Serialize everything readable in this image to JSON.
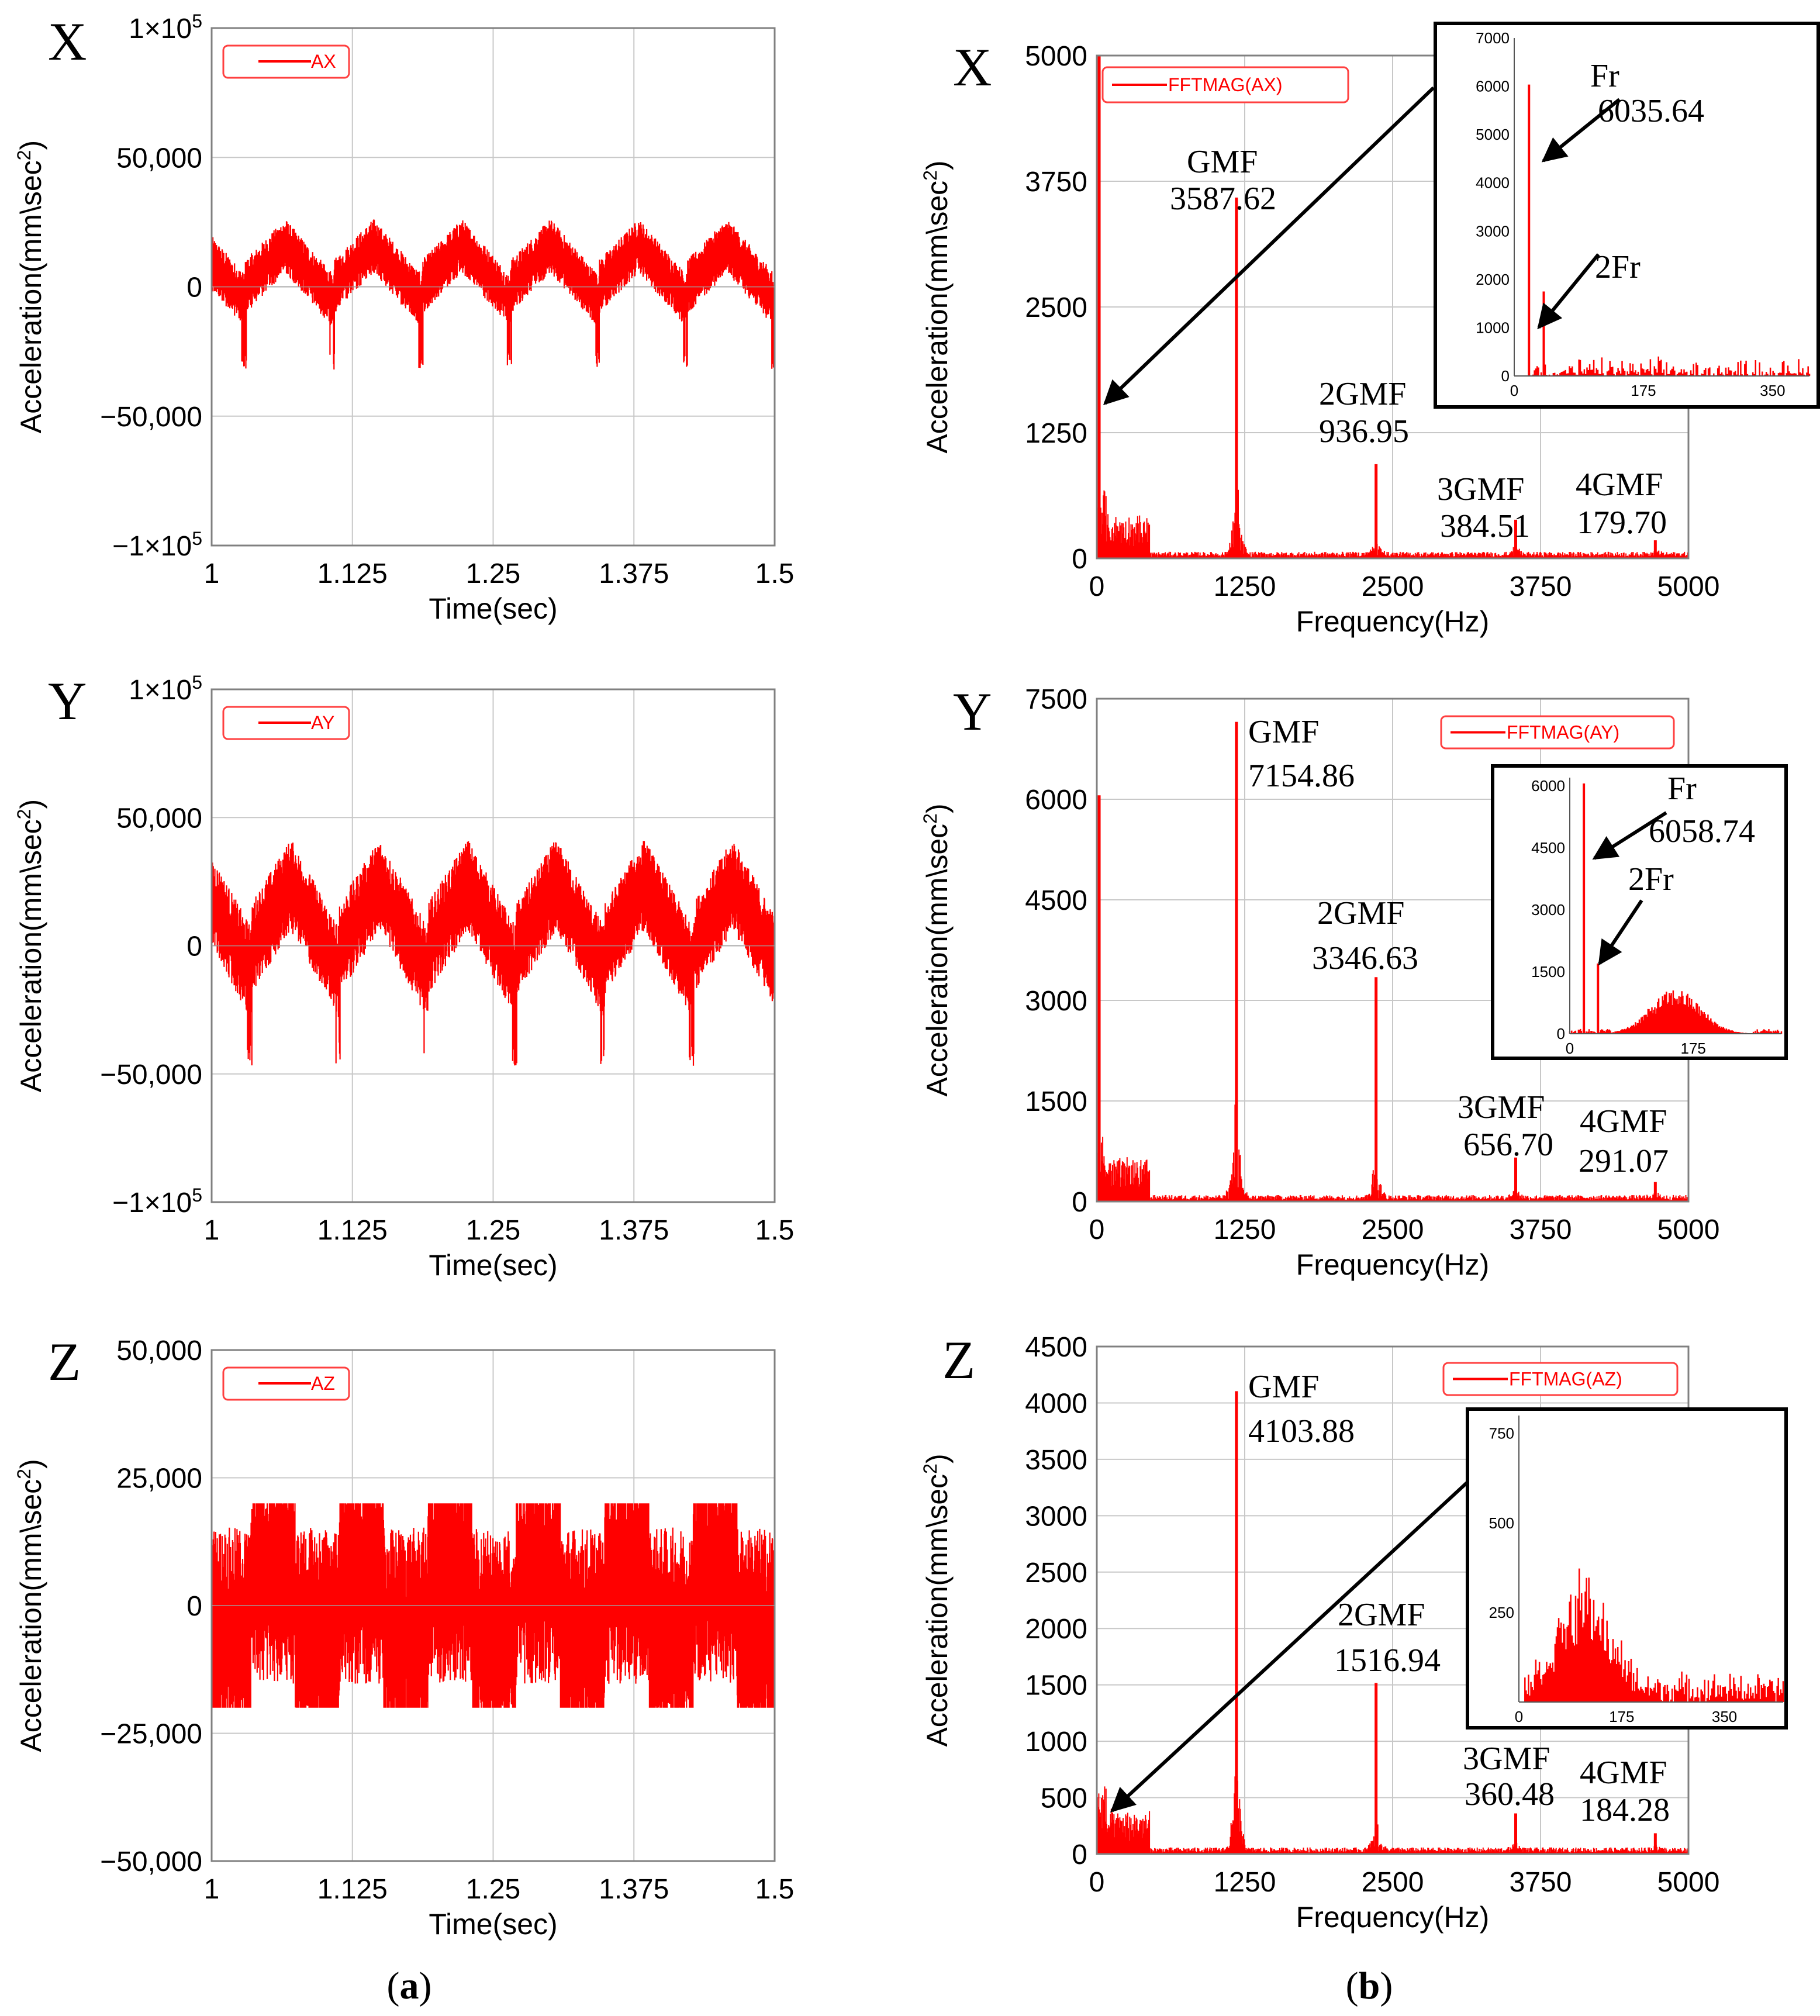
{
  "colors": {
    "series": "#ff0000",
    "frame": "#808080",
    "grid": "#c8c8c8",
    "text": "#000000",
    "arrow": "#000000"
  },
  "captions": {
    "a": "(a)",
    "b": "(b)",
    "a_letter": "a",
    "b_letter": "b"
  },
  "chart_data": [
    {
      "id": "time_x",
      "type": "line",
      "row_label": "X",
      "title": "",
      "xlabel": "Time(sec)",
      "ylabel": "Acceleration(mm\\sec²)",
      "xlim": [
        1,
        1.5
      ],
      "ylim": [
        -100000,
        100000
      ],
      "xticks": [
        1,
        1.125,
        1.25,
        1.375,
        1.5
      ],
      "xtick_labels": [
        "1",
        "1.125",
        "1.25",
        "1.375",
        "1.5"
      ],
      "yticks": [
        100000,
        50000,
        0,
        -50000,
        -100000
      ],
      "ytick_labels": [
        "1×10⁵",
        "50,000",
        "0",
        "−50,000",
        "−1×10⁵"
      ],
      "legend": "AX",
      "series": [
        {
          "name": "AX",
          "period": 0.0785,
          "phase": 0.03,
          "envelope": [
            -18000,
            26000
          ],
          "noise": 7000,
          "spike_down": -32000
        }
      ]
    },
    {
      "id": "time_y",
      "type": "line",
      "row_label": "Y",
      "title": "",
      "xlabel": "Time(sec)",
      "ylabel": "Acceleration(mm\\sec²)",
      "xlim": [
        1,
        1.5
      ],
      "ylim": [
        -100000,
        100000
      ],
      "xticks": [
        1,
        1.125,
        1.25,
        1.375,
        1.5
      ],
      "xtick_labels": [
        "1",
        "1.125",
        "1.25",
        "1.375",
        "1.5"
      ],
      "yticks": [
        100000,
        50000,
        0,
        -50000,
        -100000
      ],
      "ytick_labels": [
        "1×10⁵",
        "50,000",
        "0",
        "−50,000",
        "−1×10⁵"
      ],
      "legend": "AY",
      "series": [
        {
          "name": "AY",
          "period": 0.0785,
          "phase": 0.035,
          "envelope": [
            -30000,
            40000
          ],
          "noise": 12000,
          "spike_down": -47000
        }
      ]
    },
    {
      "id": "time_z",
      "type": "line",
      "row_label": "Z",
      "title": "",
      "xlabel": "Time(sec)",
      "ylabel": "Acceleration(mm\\sec²)",
      "xlim": [
        1,
        1.5
      ],
      "ylim": [
        -50000,
        50000
      ],
      "xticks": [
        1,
        1.125,
        1.25,
        1.375,
        1.5
      ],
      "xtick_labels": [
        "1",
        "1.125",
        "1.25",
        "1.375",
        "1.5"
      ],
      "yticks": [
        50000,
        25000,
        0,
        -25000,
        -50000
      ],
      "ytick_labels": [
        "50,000",
        "25,000",
        "0",
        "−25,000",
        "−50,000"
      ],
      "legend": "AZ",
      "series": [
        {
          "name": "AZ",
          "period": 0.0785,
          "phase": 0.035,
          "envelope": [
            -20000,
            20000
          ],
          "noise": 9000,
          "spike_down": -21000
        }
      ]
    },
    {
      "id": "fft_x",
      "type": "line",
      "row_label": "X",
      "title": "",
      "xlabel": "Frequency(Hz)",
      "ylabel": "Acceleration(mm\\sec²)",
      "xlim": [
        0,
        5000
      ],
      "ylim": [
        0,
        5000
      ],
      "xticks": [
        0,
        1250,
        2500,
        3750,
        5000
      ],
      "xtick_labels": [
        "0",
        "1250",
        "2500",
        "3750",
        "5000"
      ],
      "yticks": [
        5000,
        3750,
        2500,
        1250,
        0
      ],
      "ytick_labels": [
        "5000",
        "3750",
        "2500",
        "1250",
        "0"
      ],
      "legend": "FFTMAG(AX)",
      "peaks": [
        {
          "label": "GMF",
          "freq": 1180,
          "value": 3587.62,
          "value_text": "3587.62"
        },
        {
          "label": "2GMF",
          "freq": 2360,
          "value": 936.95,
          "value_text": "936.95"
        },
        {
          "label": "3GMF",
          "freq": 3540,
          "value": 384.51,
          "value_text": "384.51"
        },
        {
          "label": "4GMF",
          "freq": 4720,
          "value": 179.7,
          "value_text": "179.70"
        }
      ],
      "inset": {
        "xlim": [
          0,
          400
        ],
        "ylim": [
          0,
          7000
        ],
        "xticks": [
          0,
          175,
          350
        ],
        "xtick_labels": [
          "0",
          "175",
          "350"
        ],
        "yticks": [
          0,
          1000,
          2000,
          3000,
          4000,
          5000,
          6000,
          7000
        ],
        "ytick_labels": [
          "0",
          "1000",
          "2000",
          "3000",
          "4000",
          "5000",
          "6000",
          "7000"
        ],
        "peaks": [
          {
            "label": "Fr",
            "freq": 20,
            "value": 6035.64,
            "value_text": "6035.64"
          },
          {
            "label": "2Fr",
            "freq": 40,
            "value": 1750
          }
        ]
      }
    },
    {
      "id": "fft_y",
      "type": "line",
      "row_label": "Y",
      "title": "",
      "xlabel": "Frequency(Hz)",
      "ylabel": "Acceleration(mm\\sec²)",
      "xlim": [
        0,
        5000
      ],
      "ylim": [
        0,
        7500
      ],
      "xticks": [
        0,
        1250,
        2500,
        3750,
        5000
      ],
      "xtick_labels": [
        "0",
        "1250",
        "2500",
        "3750",
        "5000"
      ],
      "yticks": [
        7500,
        6000,
        4500,
        3000,
        1500,
        0
      ],
      "ytick_labels": [
        "7500",
        "6000",
        "4500",
        "3000",
        "1500",
        "0"
      ],
      "legend": "FFTMAG(AY)",
      "peaks": [
        {
          "label": "GMF",
          "freq": 1180,
          "value": 7154.86,
          "value_text": "7154.86"
        },
        {
          "label": "2GMF",
          "freq": 2360,
          "value": 3346.63,
          "value_text": "3346.63"
        },
        {
          "label": "3GMF",
          "freq": 3540,
          "value": 656.7,
          "value_text": "656.70"
        },
        {
          "label": "4GMF",
          "freq": 4720,
          "value": 291.07,
          "value_text": "291.07"
        }
      ],
      "inset": {
        "xlim": [
          0,
          300
        ],
        "ylim": [
          0,
          6200
        ],
        "xticks": [
          0,
          175
        ],
        "xtick_labels": [
          "0",
          "175"
        ],
        "yticks": [
          0,
          1500,
          3000,
          4500,
          6000
        ],
        "ytick_labels": [
          "0",
          "1500",
          "3000",
          "4500",
          "6000"
        ],
        "peaks": [
          {
            "label": "Fr",
            "freq": 20,
            "value": 6058.74,
            "value_text": "6058.74"
          },
          {
            "label": "2Fr",
            "freq": 40,
            "value": 1700
          }
        ]
      }
    },
    {
      "id": "fft_z",
      "type": "line",
      "row_label": "Z",
      "title": "",
      "xlabel": "Frequency(Hz)",
      "ylabel": "Acceleration(mm\\sec²)",
      "xlim": [
        0,
        5000
      ],
      "ylim": [
        0,
        4500
      ],
      "xticks": [
        0,
        1250,
        2500,
        3750,
        5000
      ],
      "xtick_labels": [
        "0",
        "1250",
        "2500",
        "3750",
        "5000"
      ],
      "yticks": [
        4500,
        4000,
        3500,
        3000,
        2500,
        2000,
        1500,
        1000,
        500,
        0
      ],
      "ytick_labels": [
        "4500",
        "4000",
        "3500",
        "3000",
        "2500",
        "2000",
        "1500",
        "1000",
        "500",
        "0"
      ],
      "legend": "FFTMAG(AZ)",
      "peaks": [
        {
          "label": "GMF",
          "freq": 1180,
          "value": 4103.88,
          "value_text": "4103.88"
        },
        {
          "label": "2GMF",
          "freq": 2360,
          "value": 1516.94,
          "value_text": "1516.94"
        },
        {
          "label": "3GMF",
          "freq": 3540,
          "value": 360.48,
          "value_text": "360.48"
        },
        {
          "label": "4GMF",
          "freq": 4720,
          "value": 184.28,
          "value_text": "184.28"
        }
      ],
      "inset": {
        "xlim": [
          0,
          450
        ],
        "ylim": [
          0,
          800
        ],
        "xticks": [
          0,
          175,
          350
        ],
        "xtick_labels": [
          "0",
          "175",
          "350"
        ],
        "yticks": [
          250,
          500,
          750
        ],
        "ytick_labels": [
          "250",
          "500",
          "750"
        ],
        "peaks": []
      }
    }
  ]
}
